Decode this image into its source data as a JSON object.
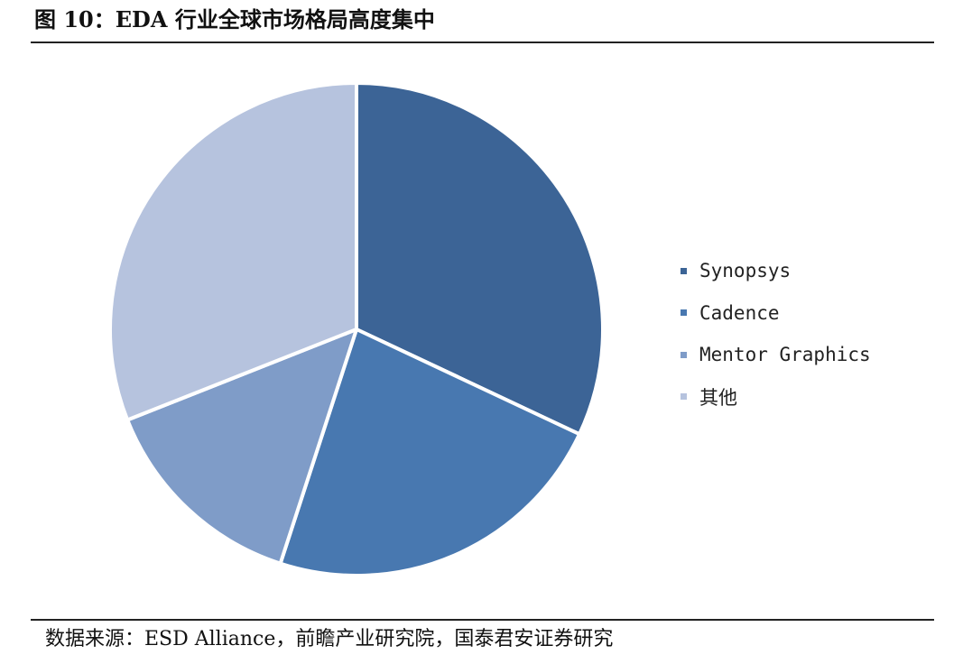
{
  "figure": {
    "title": "图 10：EDA 行业全球市场格局高度集中",
    "source": "数据来源：ESD Alliance，前瞻产业研究院，国泰君安证券研究"
  },
  "chart_data": {
    "type": "pie",
    "title": "",
    "legend_position": "right",
    "start_angle_deg": 0,
    "direction": "clockwise",
    "slices": [
      {
        "label": "Synopsys",
        "value": 32,
        "color": "#3c6496"
      },
      {
        "label": "Cadence",
        "value": 23,
        "color": "#4878b0"
      },
      {
        "label": "Mentor Graphics",
        "value": 14,
        "color": "#7f9cc8"
      },
      {
        "label": "其他",
        "value": 31,
        "color": "#b6c3de"
      }
    ]
  }
}
